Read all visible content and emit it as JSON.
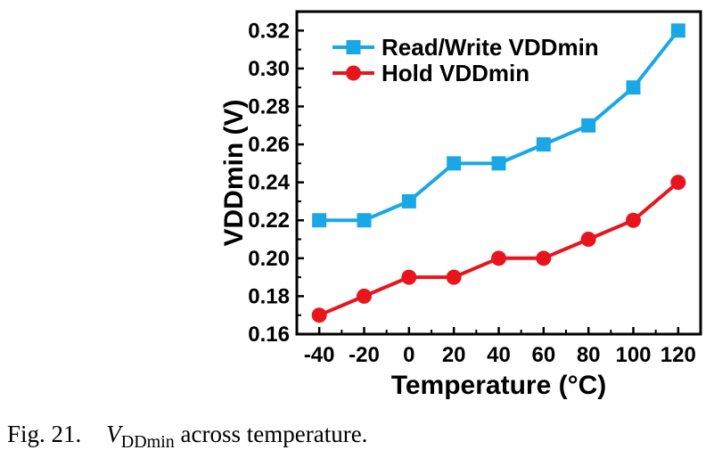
{
  "chart_data": {
    "type": "line",
    "xlabel": "Temperature (°C)",
    "ylabel": "VDDmin (V)",
    "x": [
      -40,
      -20,
      0,
      20,
      40,
      60,
      80,
      100,
      120
    ],
    "xlim": [
      -50,
      130
    ],
    "ylim": [
      0.16,
      0.33
    ],
    "x_ticks": [
      "-40",
      "-20",
      "0",
      "20",
      "40",
      "60",
      "80",
      "100",
      "120"
    ],
    "y_ticks": [
      "0.16",
      "0.18",
      "0.20",
      "0.22",
      "0.24",
      "0.26",
      "0.28",
      "0.30",
      "0.32"
    ],
    "grid": false,
    "legend_position": "top-left",
    "series": [
      {
        "name": "Read/Write VDDmin",
        "color": "#1aa7e6",
        "marker": "square",
        "values": [
          0.22,
          0.22,
          0.23,
          0.25,
          0.25,
          0.26,
          0.27,
          0.29,
          0.32
        ]
      },
      {
        "name": "Hold VDDmin",
        "color": "#e8151c",
        "marker": "circle",
        "values": [
          0.17,
          0.18,
          0.19,
          0.19,
          0.2,
          0.2,
          0.21,
          0.22,
          0.24
        ]
      }
    ]
  },
  "caption": {
    "fig_label": "Fig. 21.",
    "symbol": "V",
    "subscript": "DDmin",
    "text": " across temperature."
  }
}
